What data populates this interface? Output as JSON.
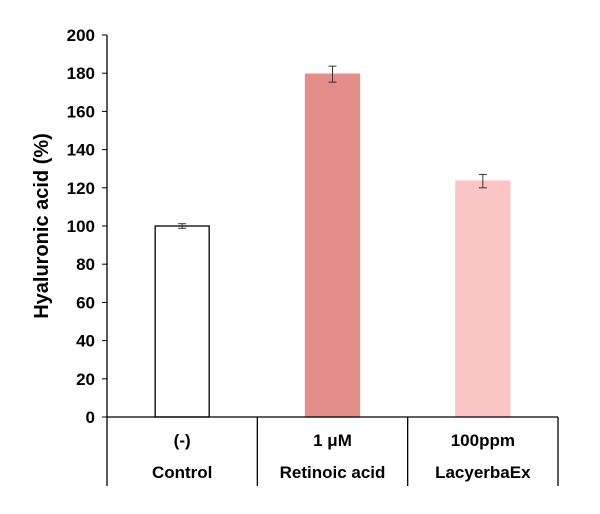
{
  "chart_data": {
    "type": "bar",
    "ylabel": "Hyaluronic acid (%)",
    "ylim": [
      0,
      200
    ],
    "ytick_step": 20,
    "yticks": [
      "0",
      "20",
      "40",
      "60",
      "80",
      "100",
      "120",
      "140",
      "160",
      "180",
      "200"
    ],
    "categories": [
      {
        "dose": "(-)",
        "group": "Control"
      },
      {
        "dose": "1 μM",
        "group": "Retinoic acid"
      },
      {
        "dose": "100ppm",
        "group": "LacyerbaEx"
      }
    ],
    "values": [
      100,
      179.5,
      123.5
    ],
    "errors": [
      1.2,
      4.2,
      3.5
    ],
    "bar_fill_colors": [
      "#ffffff",
      "#e38e88",
      "#fcc5c5"
    ],
    "bar_stroke_colors": [
      "#000000",
      "#e38e88",
      "#fcc5c5"
    ],
    "grid": false,
    "legend": "none"
  }
}
